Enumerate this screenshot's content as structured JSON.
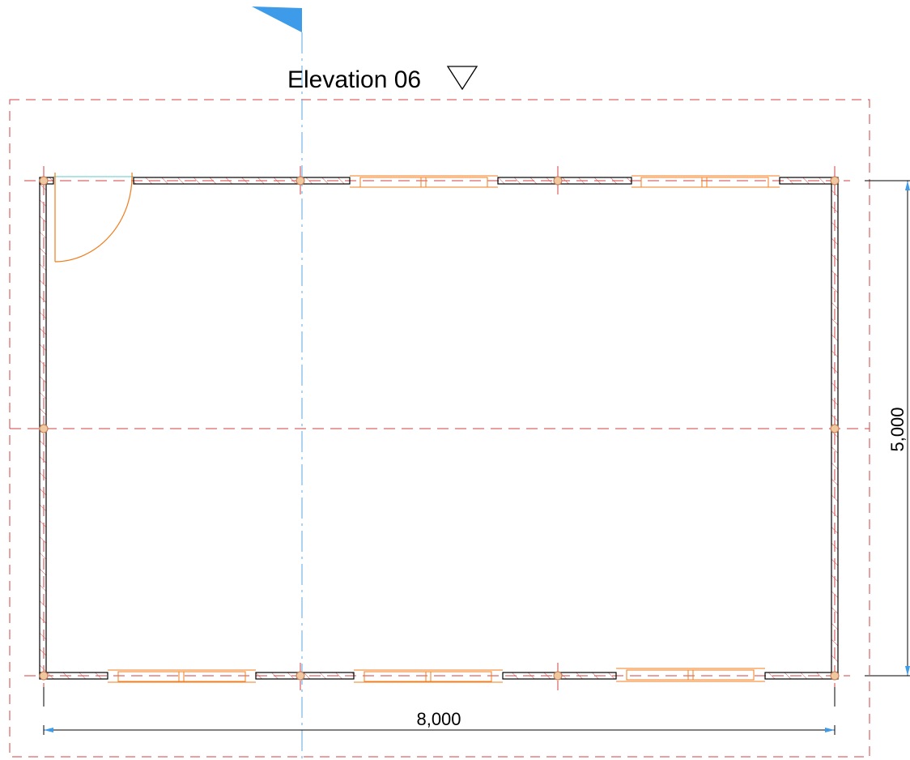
{
  "elevation_marker": {
    "label": "Elevation 06",
    "symbol": "▽"
  },
  "dimensions": {
    "horizontal": "8,000",
    "vertical": "5,000"
  },
  "colors": {
    "wall_outline": "#000000",
    "wall_hatch": "#e05050",
    "grid_line": "#d04040",
    "section_line": "#5aa9e6",
    "section_flag": "#3d9be9",
    "window": "#f07d1e",
    "door": "#f07d1e",
    "column_fill": "#f0c8a0",
    "column_stroke": "#c07850",
    "dimension": "#000000",
    "dimension_arrow": "#3d9be9",
    "cyan_line": "#5cc8c8"
  }
}
